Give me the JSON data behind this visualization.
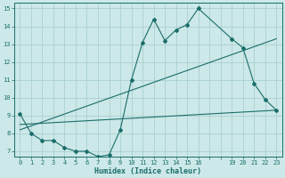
{
  "xlabel": "Humidex (Indice chaleur)",
  "bg_color": "#cce8e8",
  "line_color": "#1a6e6a",
  "grid_color": "#aad0d0",
  "xlim": [
    -0.5,
    23.5
  ],
  "ylim": [
    6.7,
    15.3
  ],
  "all_xticks": [
    0,
    1,
    2,
    3,
    4,
    5,
    6,
    7,
    8,
    9,
    10,
    11,
    12,
    13,
    14,
    15,
    16,
    17,
    18,
    19,
    20,
    21,
    22,
    23
  ],
  "labeled_xticks": [
    0,
    1,
    2,
    3,
    4,
    5,
    6,
    7,
    8,
    9,
    10,
    11,
    12,
    13,
    14,
    15,
    16,
    19,
    20,
    21,
    22,
    23
  ],
  "yticks": [
    7,
    8,
    9,
    10,
    11,
    12,
    13,
    14,
    15
  ],
  "line1_x": [
    0,
    1,
    2,
    3,
    4,
    5,
    6,
    7,
    8,
    9,
    10,
    11,
    12,
    13,
    14,
    15,
    16,
    19,
    20,
    21,
    22,
    23
  ],
  "line1_y": [
    9.1,
    8.0,
    7.6,
    7.6,
    7.2,
    7.0,
    7.0,
    6.7,
    6.8,
    8.2,
    11.0,
    13.1,
    14.4,
    13.2,
    13.8,
    14.1,
    15.0,
    13.3,
    12.8,
    10.8,
    9.9,
    9.3
  ],
  "line2_x": [
    0,
    23
  ],
  "line2_y": [
    8.2,
    13.3
  ],
  "line3_x": [
    0,
    23
  ],
  "line3_y": [
    8.5,
    9.3
  ],
  "xlabel_fontsize": 6.0,
  "tick_fontsize": 5.0
}
